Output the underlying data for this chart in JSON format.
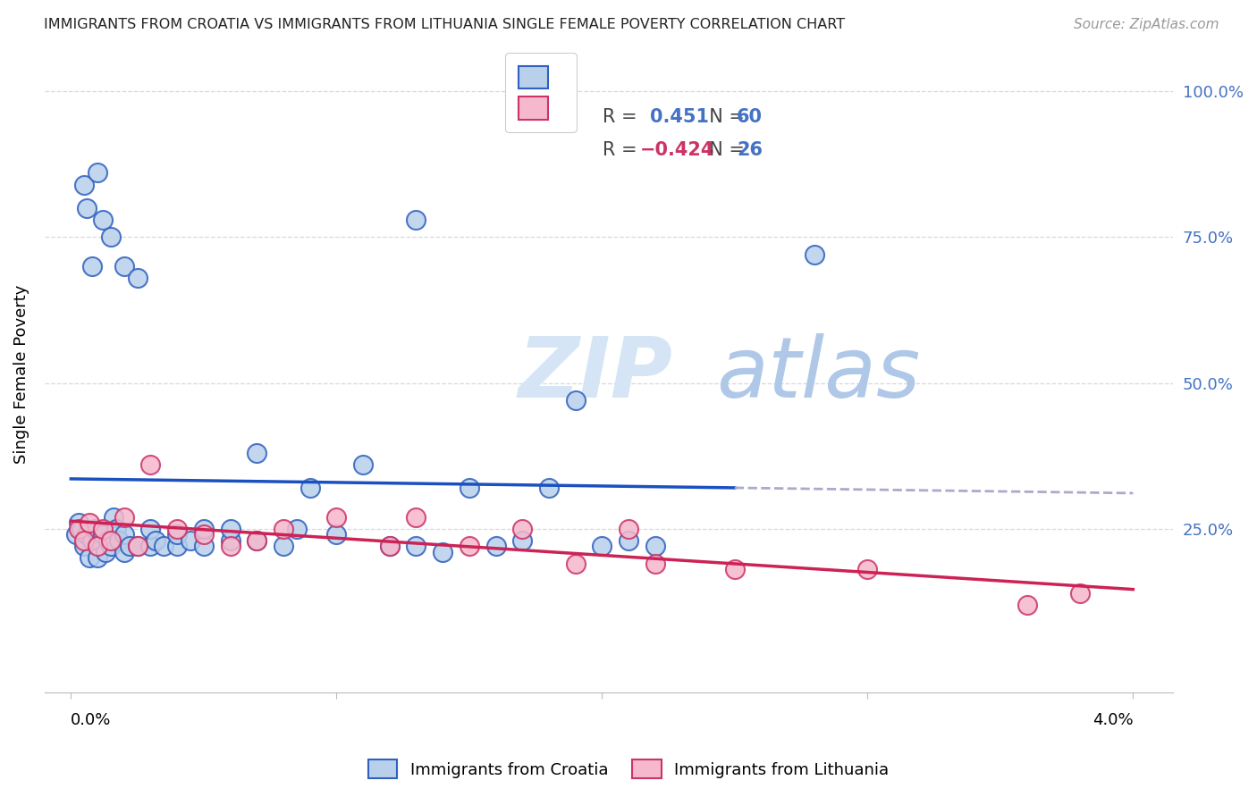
{
  "title": "IMMIGRANTS FROM CROATIA VS IMMIGRANTS FROM LITHUANIA SINGLE FEMALE POVERTY CORRELATION CHART",
  "source": "Source: ZipAtlas.com",
  "ylabel": "Single Female Poverty",
  "x_left_label": "0.0%",
  "x_right_label": "4.0%",
  "right_ytick_labels": [
    "100.0%",
    "75.0%",
    "50.0%",
    "25.0%"
  ],
  "right_ytick_vals": [
    1.0,
    0.75,
    0.5,
    0.25
  ],
  "R_croatia": 0.451,
  "N_croatia": 60,
  "R_lithuania": -0.424,
  "N_lithuania": 26,
  "croatia_face": "#b8d0ea",
  "croatia_edge": "#3060c0",
  "lithuania_face": "#f5b8cc",
  "lithuania_edge": "#cc3366",
  "croatia_line_color": "#1a50c0",
  "lithuania_line_color": "#cc2255",
  "dashed_color": "#aaaacc",
  "watermark_color": "#dce8f5",
  "grid_color": "#d8d8d8",
  "xlim_min": 0.0,
  "xlim_max": 0.04,
  "ylim_min": 0.0,
  "ylim_max": 1.0,
  "croatia_x": [
    0.0002,
    0.0003,
    0.0004,
    0.0005,
    0.0006,
    0.0007,
    0.0008,
    0.0009,
    0.001,
    0.001,
    0.0012,
    0.0013,
    0.0014,
    0.0015,
    0.0016,
    0.0017,
    0.0018,
    0.002,
    0.002,
    0.0022,
    0.0025,
    0.003,
    0.003,
    0.0032,
    0.0035,
    0.004,
    0.004,
    0.0045,
    0.005,
    0.005,
    0.006,
    0.006,
    0.007,
    0.007,
    0.008,
    0.0085,
    0.009,
    0.01,
    0.011,
    0.012,
    0.013,
    0.014,
    0.015,
    0.016,
    0.017,
    0.018,
    0.019,
    0.02,
    0.021,
    0.022,
    0.0005,
    0.0006,
    0.0008,
    0.001,
    0.0012,
    0.0015,
    0.002,
    0.0025,
    0.013,
    0.028
  ],
  "croatia_y": [
    0.24,
    0.26,
    0.25,
    0.22,
    0.24,
    0.2,
    0.23,
    0.25,
    0.22,
    0.2,
    0.24,
    0.21,
    0.23,
    0.22,
    0.27,
    0.25,
    0.23,
    0.21,
    0.24,
    0.22,
    0.22,
    0.22,
    0.25,
    0.23,
    0.22,
    0.22,
    0.24,
    0.23,
    0.22,
    0.25,
    0.23,
    0.25,
    0.38,
    0.23,
    0.22,
    0.25,
    0.32,
    0.24,
    0.36,
    0.22,
    0.22,
    0.21,
    0.32,
    0.22,
    0.23,
    0.32,
    0.47,
    0.22,
    0.23,
    0.22,
    0.84,
    0.8,
    0.7,
    0.86,
    0.78,
    0.75,
    0.7,
    0.68,
    0.78,
    0.72
  ],
  "lithuania_x": [
    0.0003,
    0.0005,
    0.0007,
    0.001,
    0.0012,
    0.0015,
    0.002,
    0.0025,
    0.003,
    0.004,
    0.005,
    0.006,
    0.007,
    0.008,
    0.01,
    0.012,
    0.013,
    0.015,
    0.017,
    0.019,
    0.021,
    0.022,
    0.025,
    0.03,
    0.036,
    0.038
  ],
  "lithuania_y": [
    0.25,
    0.23,
    0.26,
    0.22,
    0.25,
    0.23,
    0.27,
    0.22,
    0.36,
    0.25,
    0.24,
    0.22,
    0.23,
    0.25,
    0.27,
    0.22,
    0.27,
    0.22,
    0.25,
    0.19,
    0.25,
    0.19,
    0.18,
    0.18,
    0.12,
    0.14
  ]
}
